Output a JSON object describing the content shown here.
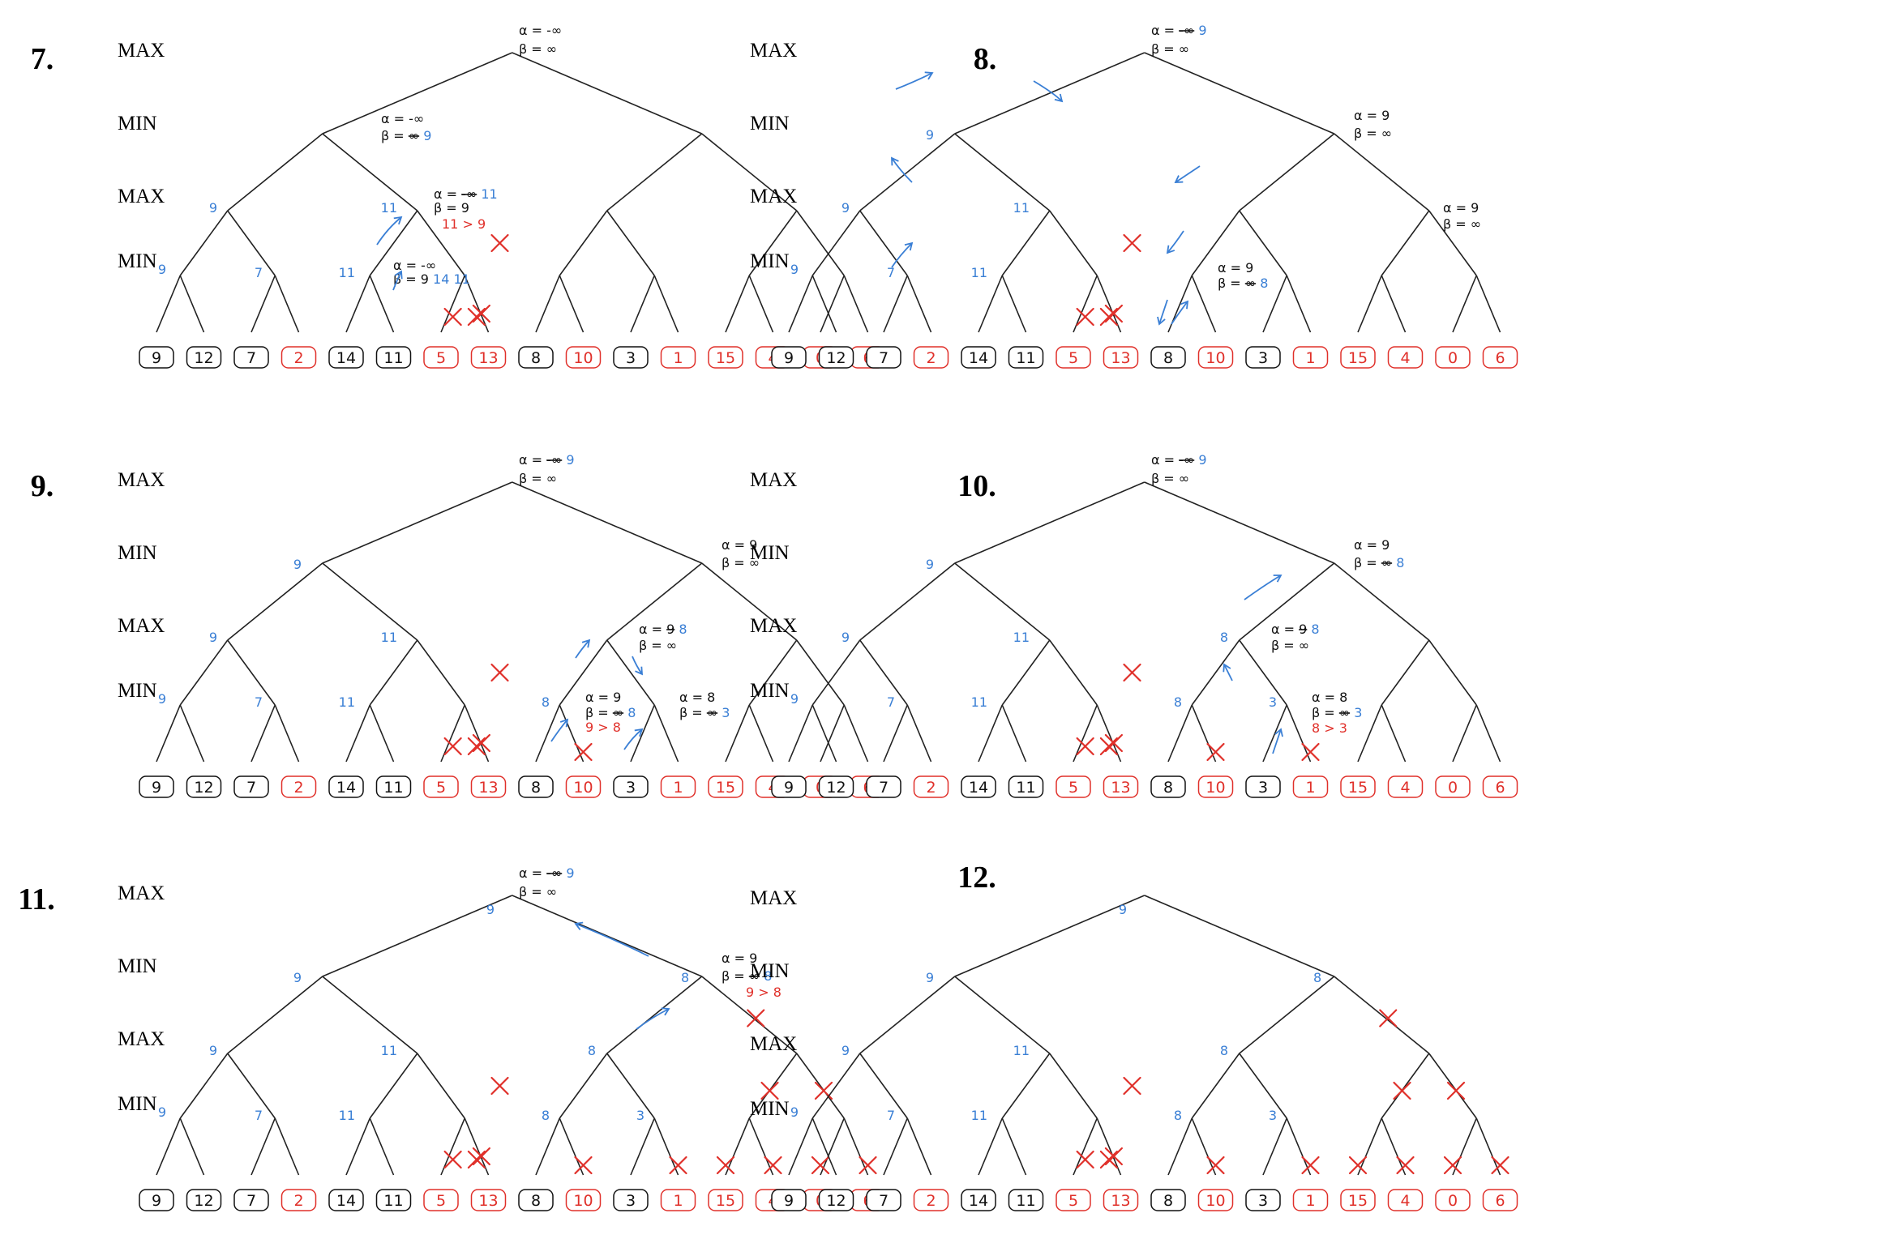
{
  "colors": {
    "black": "#111111",
    "blue": "#3a7fd5",
    "red": "#e0302a"
  },
  "level_labels": [
    "MAX",
    "MIN",
    "MAX",
    "MIN"
  ],
  "leaves": [
    {
      "v": "9",
      "c": "black"
    },
    {
      "v": "12",
      "c": "black"
    },
    {
      "v": "7",
      "c": "black"
    },
    {
      "v": "2",
      "c": "red"
    },
    {
      "v": "14",
      "c": "black"
    },
    {
      "v": "11",
      "c": "black"
    },
    {
      "v": "5",
      "c": "red"
    },
    {
      "v": "13",
      "c": "red"
    },
    {
      "v": "8",
      "c": "black"
    },
    {
      "v": "10",
      "c": "red"
    },
    {
      "v": "3",
      "c": "black"
    },
    {
      "v": "1",
      "c": "red"
    },
    {
      "v": "15",
      "c": "red"
    },
    {
      "v": "4",
      "c": "red"
    },
    {
      "v": "0",
      "c": "red"
    },
    {
      "v": "6",
      "c": "red"
    }
  ],
  "panels": [
    {
      "number": "7.",
      "labels": [
        {
          "n": "h1",
          "s": [
            [
              "α = -∞",
              "black"
            ]
          ]
        },
        {
          "n": "h2",
          "s": [
            [
              "β = ∞",
              "black"
            ]
          ]
        },
        {
          "n": "d0",
          "s": [
            [
              "α = -∞",
              "black"
            ]
          ]
        },
        {
          "n": "d1",
          "s": [
            [
              "β = ",
              "black"
            ],
            [
              "∞",
              "black",
              "strike"
            ],
            [
              " 9",
              "blue"
            ]
          ]
        },
        {
          "n": "b0",
          "s": [
            [
              "9",
              "blue"
            ]
          ]
        },
        {
          "n": "c0",
          "s": [
            [
              "9",
              "blue"
            ]
          ]
        },
        {
          "n": "c1",
          "s": [
            [
              "7",
              "blue"
            ]
          ]
        },
        {
          "n": "b1",
          "s": [
            [
              "11",
              "blue"
            ]
          ]
        },
        {
          "n": "c2",
          "s": [
            [
              "11",
              "blue"
            ]
          ]
        },
        {
          "n": "e0",
          "s": [
            [
              "α = ",
              "black"
            ],
            [
              "-∞",
              "black",
              "strike"
            ],
            [
              " 11",
              "blue"
            ]
          ]
        },
        {
          "n": "e1",
          "s": [
            [
              "β = 9",
              "black"
            ]
          ]
        },
        {
          "n": "e2",
          "s": [
            [
              "11 > 9",
              "red"
            ]
          ]
        },
        {
          "n": "f0",
          "s": [
            [
              "α = -∞",
              "black"
            ]
          ]
        },
        {
          "n": "f1",
          "s": [
            [
              "β = 9",
              "black"
            ],
            [
              " 14 11",
              "blue"
            ]
          ]
        }
      ],
      "crosses": [
        "c3",
        "n5",
        "n6",
        "n7"
      ],
      "arrows": [
        "a1",
        "a2"
      ]
    },
    {
      "number": "8.",
      "labels": [
        {
          "n": "h1",
          "s": [
            [
              "α = ",
              "black"
            ],
            [
              "-∞",
              "black",
              "strike"
            ],
            [
              " 9",
              "blue"
            ]
          ]
        },
        {
          "n": "h2",
          "s": [
            [
              "β = ∞",
              "black"
            ]
          ]
        },
        {
          "n": "a0",
          "s": [
            [
              "9",
              "blue"
            ]
          ]
        },
        {
          "n": "b0",
          "s": [
            [
              "9",
              "blue"
            ]
          ]
        },
        {
          "n": "c0",
          "s": [
            [
              "9",
              "blue"
            ]
          ]
        },
        {
          "n": "c1",
          "s": [
            [
              "7",
              "blue"
            ]
          ]
        },
        {
          "n": "b1",
          "s": [
            [
              "11",
              "blue"
            ]
          ]
        },
        {
          "n": "c2",
          "s": [
            [
              "11",
              "blue"
            ]
          ]
        },
        {
          "n": "r0",
          "s": [
            [
              "α = 9",
              "black"
            ]
          ]
        },
        {
          "n": "r1",
          "s": [
            [
              "β = ∞",
              "black"
            ]
          ]
        },
        {
          "n": "g0",
          "s": [
            [
              "α = 9",
              "black"
            ]
          ]
        },
        {
          "n": "g1",
          "s": [
            [
              "β = ∞",
              "black"
            ]
          ]
        },
        {
          "n": "k0",
          "s": [
            [
              "α = 9",
              "black"
            ]
          ]
        },
        {
          "n": "k1",
          "s": [
            [
              "β = ",
              "black"
            ],
            [
              "∞",
              "black",
              "strike"
            ],
            [
              " 8",
              "blue"
            ]
          ]
        }
      ],
      "crosses": [
        "c3",
        "n5",
        "n6",
        "n7"
      ],
      "arrows": [
        "p1",
        "p2",
        "p3",
        "p4",
        "p5",
        "p6",
        "p7",
        "p8"
      ]
    },
    {
      "number": "9.",
      "labels": [
        {
          "n": "h1",
          "s": [
            [
              "α = ",
              "black"
            ],
            [
              "-∞",
              "black",
              "strike"
            ],
            [
              " 9",
              "blue"
            ]
          ]
        },
        {
          "n": "h2",
          "s": [
            [
              "β = ∞",
              "black"
            ]
          ]
        },
        {
          "n": "a0",
          "s": [
            [
              "9",
              "blue"
            ]
          ]
        },
        {
          "n": "b0",
          "s": [
            [
              "9",
              "blue"
            ]
          ]
        },
        {
          "n": "c0",
          "s": [
            [
              "9",
              "blue"
            ]
          ]
        },
        {
          "n": "c1",
          "s": [
            [
              "7",
              "blue"
            ]
          ]
        },
        {
          "n": "b1",
          "s": [
            [
              "11",
              "blue"
            ]
          ]
        },
        {
          "n": "c2",
          "s": [
            [
              "11",
              "blue"
            ]
          ]
        },
        {
          "n": "r0",
          "s": [
            [
              "α = 9",
              "black"
            ]
          ]
        },
        {
          "n": "r1",
          "s": [
            [
              "β = ∞",
              "black"
            ]
          ]
        },
        {
          "n": "m0",
          "s": [
            [
              "α = ",
              "black"
            ],
            [
              "9",
              "black",
              "strike"
            ],
            [
              " 8",
              "blue"
            ]
          ]
        },
        {
          "n": "m1",
          "s": [
            [
              "β = ∞",
              "black"
            ]
          ]
        },
        {
          "n": "c4",
          "s": [
            [
              "8",
              "blue"
            ]
          ]
        },
        {
          "n": "k0",
          "s": [
            [
              "α = 9",
              "black"
            ]
          ]
        },
        {
          "n": "k1",
          "s": [
            [
              "β = ",
              "black"
            ],
            [
              "∞",
              "black",
              "strike"
            ],
            [
              " 8",
              "blue"
            ]
          ]
        },
        {
          "n": "k2",
          "s": [
            [
              "9 > 8",
              "red"
            ]
          ]
        },
        {
          "n": "q0",
          "s": [
            [
              "α = 8",
              "black"
            ]
          ]
        },
        {
          "n": "q1",
          "s": [
            [
              "β = ",
              "black"
            ],
            [
              "∞",
              "black",
              "strike"
            ],
            [
              " 3",
              "blue"
            ]
          ]
        }
      ],
      "crosses": [
        "c3",
        "n5",
        "n6",
        "n7",
        "l9"
      ],
      "arrows": [
        "s1",
        "s2",
        "s3",
        "s4"
      ]
    },
    {
      "number": "10.",
      "labels": [
        {
          "n": "h1",
          "s": [
            [
              "α = ",
              "black"
            ],
            [
              "-∞",
              "black",
              "strike"
            ],
            [
              " 9",
              "blue"
            ]
          ]
        },
        {
          "n": "h2",
          "s": [
            [
              "β = ∞",
              "black"
            ]
          ]
        },
        {
          "n": "a0",
          "s": [
            [
              "9",
              "blue"
            ]
          ]
        },
        {
          "n": "b0",
          "s": [
            [
              "9",
              "blue"
            ]
          ]
        },
        {
          "n": "c0",
          "s": [
            [
              "9",
              "blue"
            ]
          ]
        },
        {
          "n": "c1",
          "s": [
            [
              "7",
              "blue"
            ]
          ]
        },
        {
          "n": "b1",
          "s": [
            [
              "11",
              "blue"
            ]
          ]
        },
        {
          "n": "c2",
          "s": [
            [
              "11",
              "blue"
            ]
          ]
        },
        {
          "n": "r0",
          "s": [
            [
              "α = 9",
              "black"
            ]
          ]
        },
        {
          "n": "r1",
          "s": [
            [
              "β = ",
              "black"
            ],
            [
              "∞",
              "black",
              "strike"
            ],
            [
              " 8",
              "blue"
            ]
          ]
        },
        {
          "n": "b2",
          "s": [
            [
              "8",
              "blue"
            ]
          ]
        },
        {
          "n": "m0",
          "s": [
            [
              "α = ",
              "black"
            ],
            [
              "9",
              "black",
              "strike"
            ],
            [
              " 8",
              "blue"
            ]
          ]
        },
        {
          "n": "m1",
          "s": [
            [
              "β = ∞",
              "black"
            ]
          ]
        },
        {
          "n": "c4",
          "s": [
            [
              "8",
              "blue"
            ]
          ]
        },
        {
          "n": "c5",
          "s": [
            [
              "3",
              "blue"
            ]
          ]
        },
        {
          "n": "q0",
          "s": [
            [
              "α = 8",
              "black"
            ]
          ]
        },
        {
          "n": "q1",
          "s": [
            [
              "β = ",
              "black"
            ],
            [
              "∞",
              "black",
              "strike"
            ],
            [
              " 3",
              "blue"
            ]
          ]
        },
        {
          "n": "q2",
          "s": [
            [
              "8 > 3",
              "red"
            ]
          ]
        }
      ],
      "crosses": [
        "c3",
        "n5",
        "n6",
        "n7",
        "l9",
        "l11"
      ],
      "arrows": [
        "t1",
        "t2",
        "t3"
      ]
    },
    {
      "number": "11.",
      "labels": [
        {
          "n": "h0",
          "s": [
            [
              "9",
              "blue"
            ]
          ]
        },
        {
          "n": "h1",
          "s": [
            [
              "α = ",
              "black"
            ],
            [
              "-∞",
              "black",
              "strike"
            ],
            [
              " 9",
              "blue"
            ]
          ]
        },
        {
          "n": "h2",
          "s": [
            [
              "β = ∞",
              "black"
            ]
          ]
        },
        {
          "n": "a0",
          "s": [
            [
              "9",
              "blue"
            ]
          ]
        },
        {
          "n": "a1",
          "s": [
            [
              "8",
              "blue"
            ]
          ]
        },
        {
          "n": "b0",
          "s": [
            [
              "9",
              "blue"
            ]
          ]
        },
        {
          "n": "c0",
          "s": [
            [
              "9",
              "blue"
            ]
          ]
        },
        {
          "n": "c1",
          "s": [
            [
              "7",
              "blue"
            ]
          ]
        },
        {
          "n": "b1",
          "s": [
            [
              "11",
              "blue"
            ]
          ]
        },
        {
          "n": "c2",
          "s": [
            [
              "11",
              "blue"
            ]
          ]
        },
        {
          "n": "r0",
          "s": [
            [
              "α = 9",
              "black"
            ]
          ]
        },
        {
          "n": "r1",
          "s": [
            [
              "β = ",
              "black"
            ],
            [
              "∞",
              "black",
              "strike"
            ],
            [
              " 8",
              "blue"
            ]
          ]
        },
        {
          "n": "r2",
          "s": [
            [
              "9 > 8",
              "red"
            ]
          ]
        },
        {
          "n": "b2",
          "s": [
            [
              "8",
              "blue"
            ]
          ]
        },
        {
          "n": "c4",
          "s": [
            [
              "8",
              "blue"
            ]
          ]
        },
        {
          "n": "c5",
          "s": [
            [
              "3",
              "blue"
            ]
          ]
        }
      ],
      "crosses": [
        "c3",
        "n5",
        "n6",
        "n7",
        "l9",
        "l11",
        "u3",
        "u6",
        "u7",
        "l12",
        "l13",
        "l14",
        "l15"
      ],
      "arrows": [
        "w1",
        "w2"
      ]
    },
    {
      "number": "12.",
      "labels": [
        {
          "n": "h0",
          "s": [
            [
              "9",
              "blue"
            ]
          ]
        },
        {
          "n": "a0",
          "s": [
            [
              "9",
              "blue"
            ]
          ]
        },
        {
          "n": "a1",
          "s": [
            [
              "8",
              "blue"
            ]
          ]
        },
        {
          "n": "b0",
          "s": [
            [
              "9",
              "blue"
            ]
          ]
        },
        {
          "n": "c0",
          "s": [
            [
              "9",
              "blue"
            ]
          ]
        },
        {
          "n": "c1",
          "s": [
            [
              "7",
              "blue"
            ]
          ]
        },
        {
          "n": "b1",
          "s": [
            [
              "11",
              "blue"
            ]
          ]
        },
        {
          "n": "c2",
          "s": [
            [
              "11",
              "blue"
            ]
          ]
        },
        {
          "n": "b2",
          "s": [
            [
              "8",
              "blue"
            ]
          ]
        },
        {
          "n": "c4",
          "s": [
            [
              "8",
              "blue"
            ]
          ]
        },
        {
          "n": "c5",
          "s": [
            [
              "3",
              "blue"
            ]
          ]
        }
      ],
      "crosses": [
        "c3",
        "n5",
        "n6",
        "n7",
        "l9",
        "l11",
        "u3",
        "u6",
        "u7",
        "l12",
        "l13",
        "l14",
        "l15"
      ],
      "arrows": []
    }
  ]
}
